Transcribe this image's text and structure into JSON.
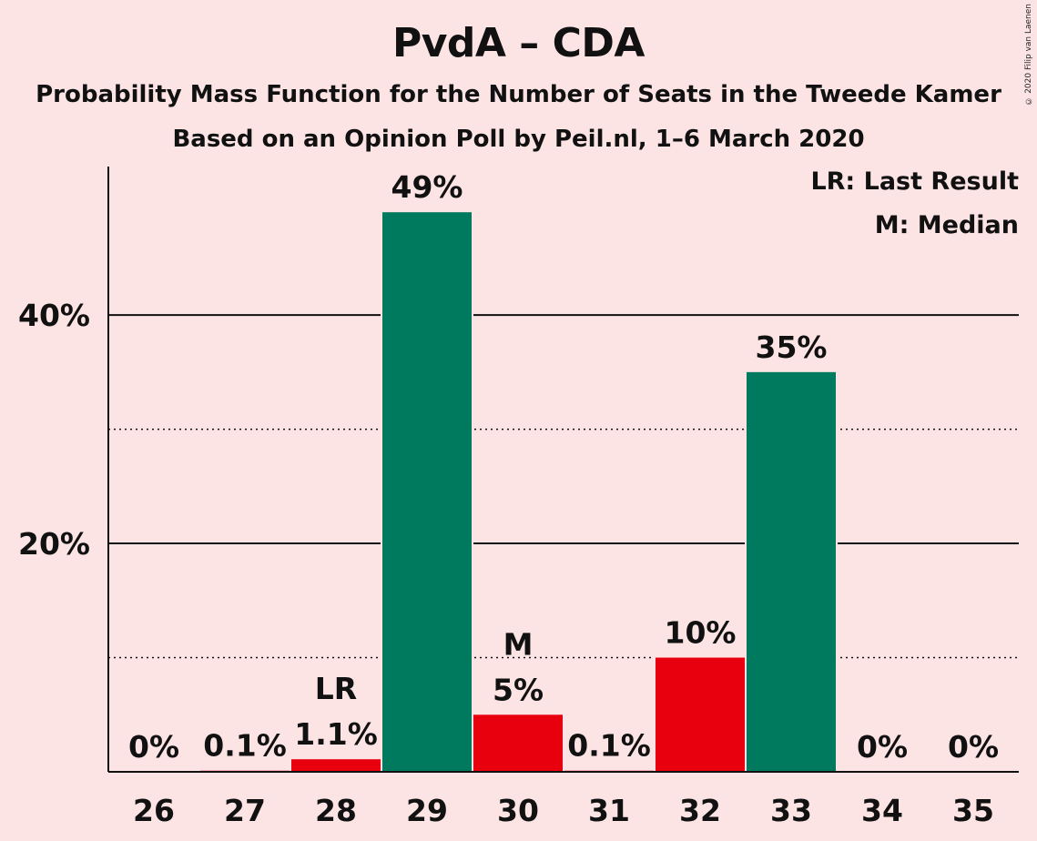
{
  "chart_data": {
    "type": "bar",
    "title": "PvdA – CDA",
    "subtitle": "Probability Mass Function for the Number of Seats in the Tweede Kamer",
    "subtitle2": "Based on an Opinion Poll by Peil.nl, 1–6 March 2020",
    "copyright": "© 2020 Filip van Laenen",
    "legend": {
      "position": "top-right",
      "last_result": "LR: Last Result",
      "median": "M: Median"
    },
    "categories": [
      "26",
      "27",
      "28",
      "29",
      "30",
      "31",
      "32",
      "33",
      "34",
      "35"
    ],
    "values": [
      0,
      0.1,
      1.1,
      49,
      5,
      0.1,
      10,
      35,
      0,
      0
    ],
    "value_labels": [
      "0%",
      "0.1%",
      "1.1%",
      "49%",
      "5%",
      "0.1%",
      "10%",
      "35%",
      "0%",
      "0%"
    ],
    "bar_colors": [
      "#e8000f",
      "#e8000f",
      "#e8000f",
      "#007a5e",
      "#e8000f",
      "#e8000f",
      "#e8000f",
      "#007a5e",
      "#e8000f",
      "#e8000f"
    ],
    "markers": {
      "28": "LR",
      "30": "M"
    },
    "y_ticks": [
      {
        "value": 20,
        "label": "20%"
      },
      {
        "value": 40,
        "label": "40%"
      }
    ],
    "minor_gridlines": [
      10,
      30
    ],
    "ylim": [
      0,
      53
    ],
    "colors": {
      "red": "#e8000f",
      "green": "#007a5e",
      "background": "#fce4e5"
    }
  }
}
